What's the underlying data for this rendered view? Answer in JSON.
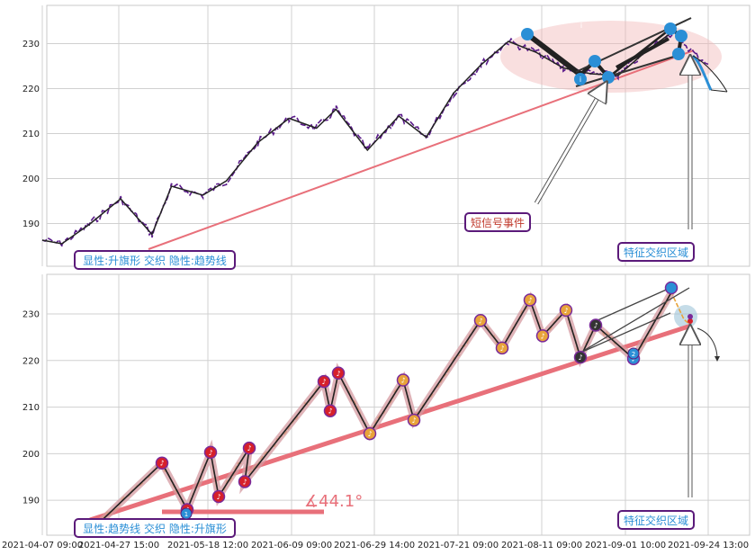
{
  "chart_data": [
    {
      "type": "line",
      "panel": "top",
      "ylim": [
        180.5,
        238.5
      ],
      "yticks": [
        190,
        200,
        210,
        220,
        230
      ],
      "grid": true,
      "series": [
        {
          "values_x": [
            "2021-04-07",
            "2021-04-12",
            "2021-04-19",
            "2021-04-27",
            "2021-05-05",
            "2021-05-10",
            "2021-05-18",
            "2021-05-24",
            "2021-06-01",
            "2021-06-09",
            "2021-06-16",
            "2021-06-21",
            "2021-06-29",
            "2021-07-07",
            "2021-07-14",
            "2021-07-21",
            "2021-07-28",
            "2021-08-04",
            "2021-08-11",
            "2021-08-18",
            "2021-08-25",
            "2021-09-01",
            "2021-09-08",
            "2021-09-15",
            "2021-09-21",
            "2021-09-24"
          ],
          "values": [
            186.3,
            185.5,
            189.8,
            195.5,
            187.6,
            198.3,
            196.3,
            199.5,
            208.0,
            213.4,
            211.2,
            215.4,
            206.3,
            213.9,
            209.2,
            219.0,
            225.3,
            230.5,
            228.1,
            224.6,
            223.3,
            222.9,
            228.2,
            232.7,
            227.3,
            225.8
          ]
        }
      ],
      "annotations": {
        "box_label": "显性:升旗形 交织 隐性:趋势线",
        "event_label": "短信号事件",
        "zone_label": "特征交织区域",
        "pattern_marks": [
          "i",
          "i"
        ]
      }
    },
    {
      "type": "line",
      "panel": "bottom",
      "ylim": [
        182.5,
        238.5
      ],
      "yticks": [
        190,
        200,
        210,
        220,
        230
      ],
      "grid": true,
      "x_ticks": [
        "2021-04-07 09:00",
        "2021-04-27 15:00",
        "2021-05-18 12:00",
        "2021-06-09 09:00",
        "2021-06-29 14:00",
        "2021-07-21 09:00",
        "2021-08-11 09:00",
        "2021-09-01 10:00",
        "2021-09-24 13:00"
      ],
      "zigzag_values": [
        184.0,
        198.0,
        188.0,
        200.3,
        190.8,
        201.2,
        194.0,
        215.5,
        209.2,
        217.3,
        204.3,
        215.8,
        207.2,
        228.6,
        222.7,
        233.0,
        225.3,
        230.8,
        220.7,
        227.6,
        220.4,
        234.6
      ],
      "annotations": {
        "box_label": "显性:趋势线 交织 隐性:升旗形",
        "angle_label": "∡44.1°",
        "zone_label": "特征交织区域",
        "markers": [
          "1",
          "2"
        ]
      }
    }
  ]
}
